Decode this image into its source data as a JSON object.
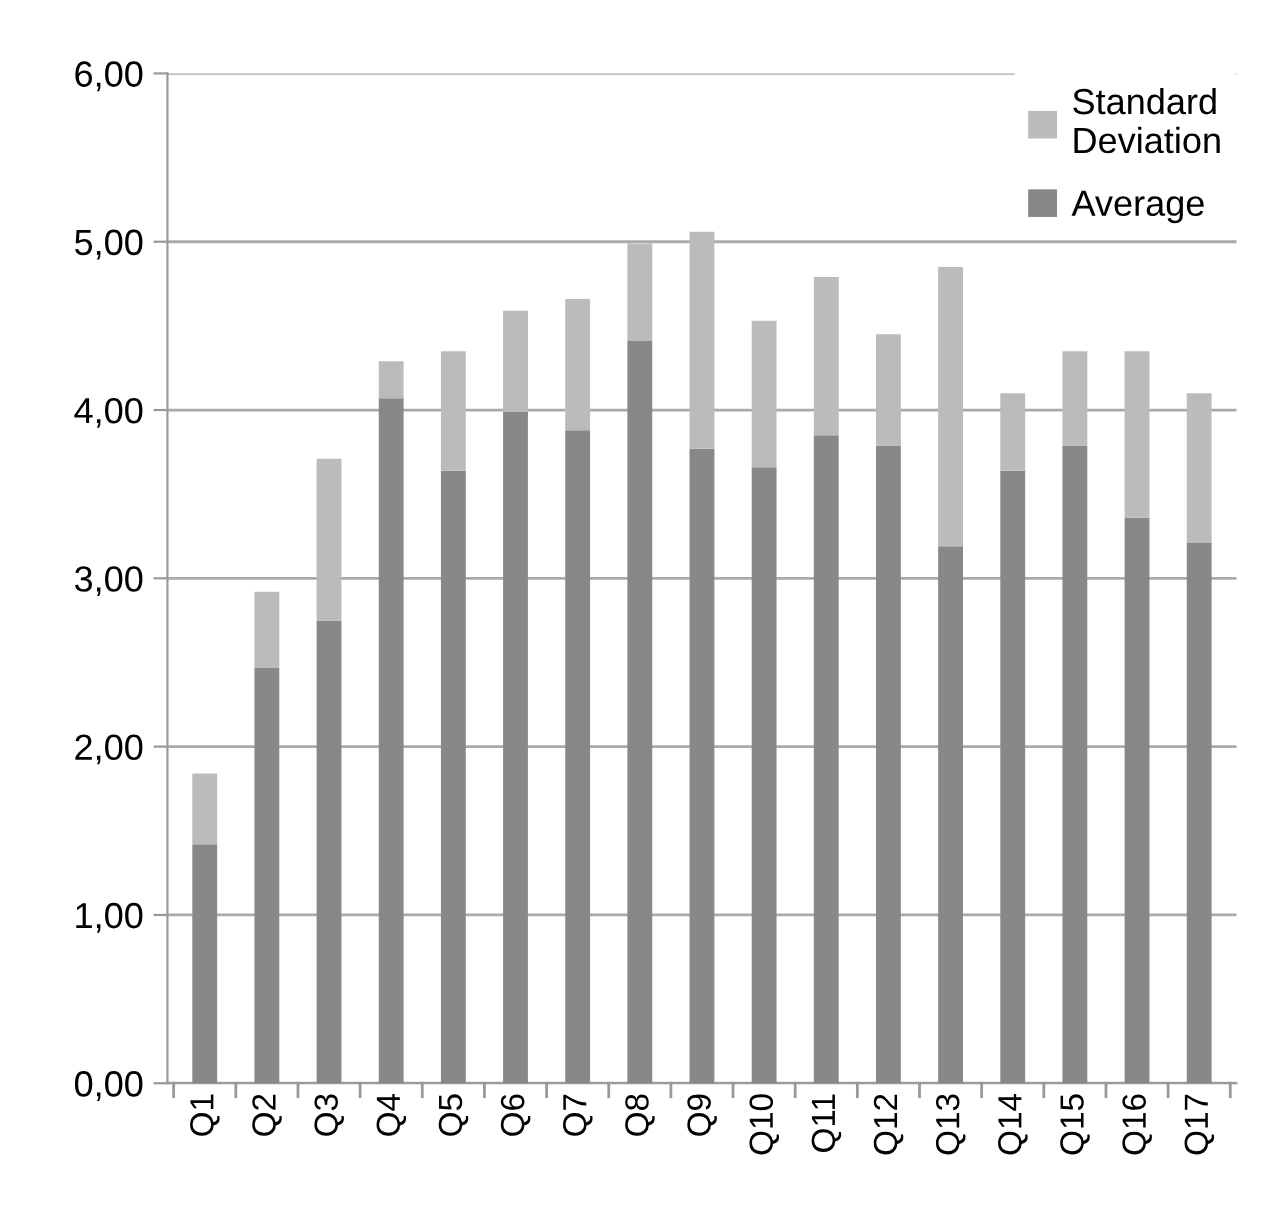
{
  "chart_data": {
    "type": "bar",
    "stacked": true,
    "categories": [
      "Q1",
      "Q2",
      "Q3",
      "Q4",
      "Q5",
      "Q6",
      "Q7",
      "Q8",
      "Q9",
      "Q10",
      "Q11",
      "Q12",
      "Q13",
      "Q14",
      "Q15",
      "Q16",
      "Q17"
    ],
    "series": [
      {
        "name": "Average",
        "color": "#888888",
        "values": [
          1.42,
          2.47,
          2.75,
          4.07,
          3.64,
          3.99,
          3.88,
          4.41,
          3.77,
          3.66,
          3.85,
          3.79,
          3.19,
          3.64,
          3.79,
          3.36,
          3.21
        ]
      },
      {
        "name": "Standard Deviation",
        "color": "#bbbbbb",
        "values": [
          0.42,
          0.45,
          0.96,
          0.22,
          0.71,
          0.6,
          0.78,
          0.58,
          1.29,
          0.87,
          0.94,
          0.66,
          1.66,
          0.46,
          0.56,
          0.99,
          0.89
        ]
      }
    ],
    "ylim": [
      0,
      6
    ],
    "yticks": [
      {
        "value": 0,
        "label": "0,00"
      },
      {
        "value": 1,
        "label": "1,00"
      },
      {
        "value": 2,
        "label": "2,00"
      },
      {
        "value": 3,
        "label": "3,00"
      },
      {
        "value": 4,
        "label": "4,00"
      },
      {
        "value": 5,
        "label": "5,00"
      },
      {
        "value": 6,
        "label": "6,00"
      }
    ],
    "grid": "y",
    "legend": "top right"
  }
}
